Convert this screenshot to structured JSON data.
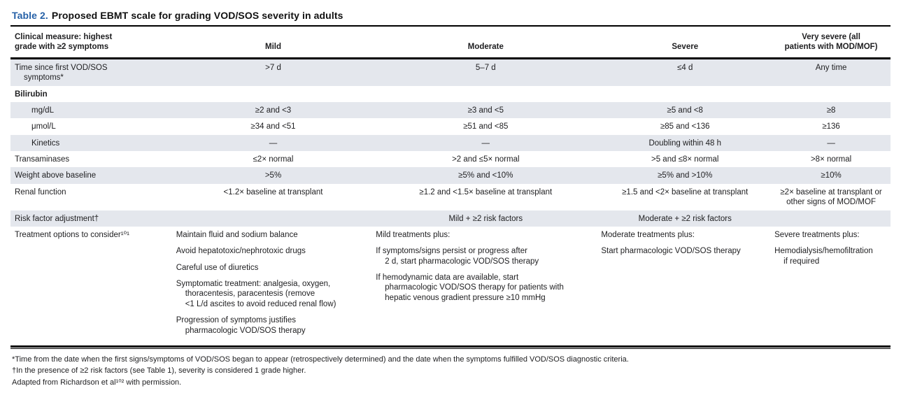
{
  "title": {
    "label": "Table 2.",
    "text": "Proposed EBMT scale for grading VOD/SOS severity in adults"
  },
  "columns": [
    "Clinical measure: highest\ngrade with ≥2 symptoms",
    "Mild",
    "Moderate",
    "Severe",
    "Very severe (all\npatients with MOD/MOF)"
  ],
  "rows": [
    {
      "type": "data",
      "shaded": true,
      "indent": false,
      "label": "Time since first VOD/SOS\nsymptoms*",
      "cells": [
        ">7 d",
        "5–7 d",
        "≤4 d",
        "Any time"
      ]
    },
    {
      "type": "section",
      "shaded": false,
      "indent": false,
      "label": "Bilirubin",
      "cells": [
        "",
        "",
        "",
        ""
      ]
    },
    {
      "type": "data",
      "shaded": true,
      "indent": true,
      "label": "mg/dL",
      "cells": [
        "≥2 and <3",
        "≥3 and <5",
        "≥5 and <8",
        "≥8"
      ]
    },
    {
      "type": "data",
      "shaded": false,
      "indent": true,
      "label": "μmol/L",
      "cells": [
        "≥34 and <51",
        "≥51 and <85",
        "≥85 and <136",
        "≥136"
      ]
    },
    {
      "type": "data",
      "shaded": true,
      "indent": true,
      "label": "Kinetics",
      "cells": [
        "—",
        "—",
        "Doubling within 48 h",
        "—"
      ]
    },
    {
      "type": "data",
      "shaded": false,
      "indent": false,
      "label": "Transaminases",
      "cells": [
        "≤2× normal",
        ">2 and ≤5× normal",
        ">5 and ≤8× normal",
        ">8× normal"
      ]
    },
    {
      "type": "data",
      "shaded": true,
      "indent": false,
      "label": "Weight above baseline",
      "cells": [
        ">5%",
        "≥5% and <10%",
        "≥5% and >10%",
        "≥10%"
      ]
    },
    {
      "type": "data",
      "shaded": false,
      "indent": false,
      "label": "Renal function",
      "cells": [
        "<1.2× baseline at transplant",
        "≥1.2 and <1.5× baseline at transplant",
        "≥1.5 and <2× baseline at transplant",
        "≥2× baseline at transplant or\nother signs of MOD/MOF"
      ]
    },
    {
      "type": "data",
      "shaded": true,
      "indent": false,
      "label": "Risk factor adjustment†",
      "cells": [
        "",
        "Mild + ≥2 risk factors",
        "Moderate + ≥2 risk factors",
        ""
      ]
    },
    {
      "type": "treatment",
      "shaded": false,
      "indent": false,
      "label": "Treatment options to consider¹⁰¹",
      "cells": [
        [
          "Maintain fluid and sodium balance",
          "Avoid hepatotoxic/nephrotoxic drugs",
          "Careful use of diuretics",
          "Symptomatic treatment: analgesia, oxygen,\nthoracentesis, paracentesis (remove\n<1 L/d ascites to avoid reduced renal flow)",
          "Progression of symptoms justifies\npharmacologic VOD/SOS therapy"
        ],
        [
          "Mild treatments plus:",
          "If symptoms/signs persist or progress after\n2 d, start pharmacologic VOD/SOS therapy",
          "If hemodynamic data are available, start\npharmacologic VOD/SOS therapy for patients with\nhepatic venous gradient pressure ≥10 mmHg"
        ],
        [
          "Moderate treatments plus:",
          "Start pharmacologic VOD/SOS therapy"
        ],
        [
          "Severe treatments plus:",
          "Hemodialysis/hemofiltration\nif required"
        ]
      ]
    }
  ],
  "footnotes": [
    "*Time from the date when the first signs/symptoms of VOD/SOS began to appear (retrospectively determined) and the date when the symptoms fulfilled VOD/SOS diagnostic criteria.",
    "†In the presence of ≥2 risk factors (see Table 1), severity is considered 1 grade higher.",
    "Adapted from Richardson et al¹⁰² with permission."
  ],
  "colors": {
    "accent_blue": "#2661a7",
    "row_shade": "#e4e7ed",
    "rule_black": "#000000"
  }
}
